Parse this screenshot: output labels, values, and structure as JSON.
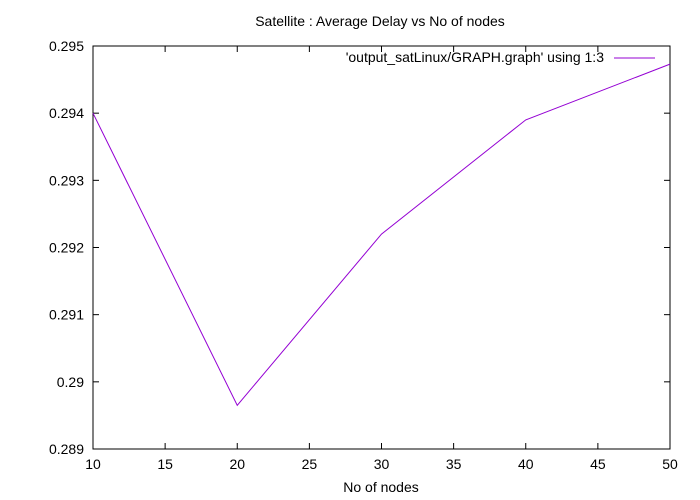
{
  "chart_data": {
    "type": "line",
    "title": "Satellite : Average Delay vs No of nodes",
    "xlabel": "No of nodes",
    "ylabel": "",
    "xlim": [
      10,
      50
    ],
    "ylim": [
      0.289,
      0.295
    ],
    "xticks": [
      "10",
      "15",
      "20",
      "25",
      "30",
      "35",
      "40",
      "45",
      "50"
    ],
    "yticks": [
      "0.289",
      "0.29",
      "0.291",
      "0.292",
      "0.293",
      "0.294",
      "0.295"
    ],
    "grid": false,
    "legend_position": "top-right",
    "series": [
      {
        "name": "'output_satLinux/GRAPH.graph' using 1:3",
        "color": "#9400d3",
        "x": [
          10,
          20,
          30,
          40,
          50
        ],
        "y": [
          0.294,
          0.28965,
          0.2922,
          0.2939,
          0.29473
        ]
      }
    ]
  }
}
